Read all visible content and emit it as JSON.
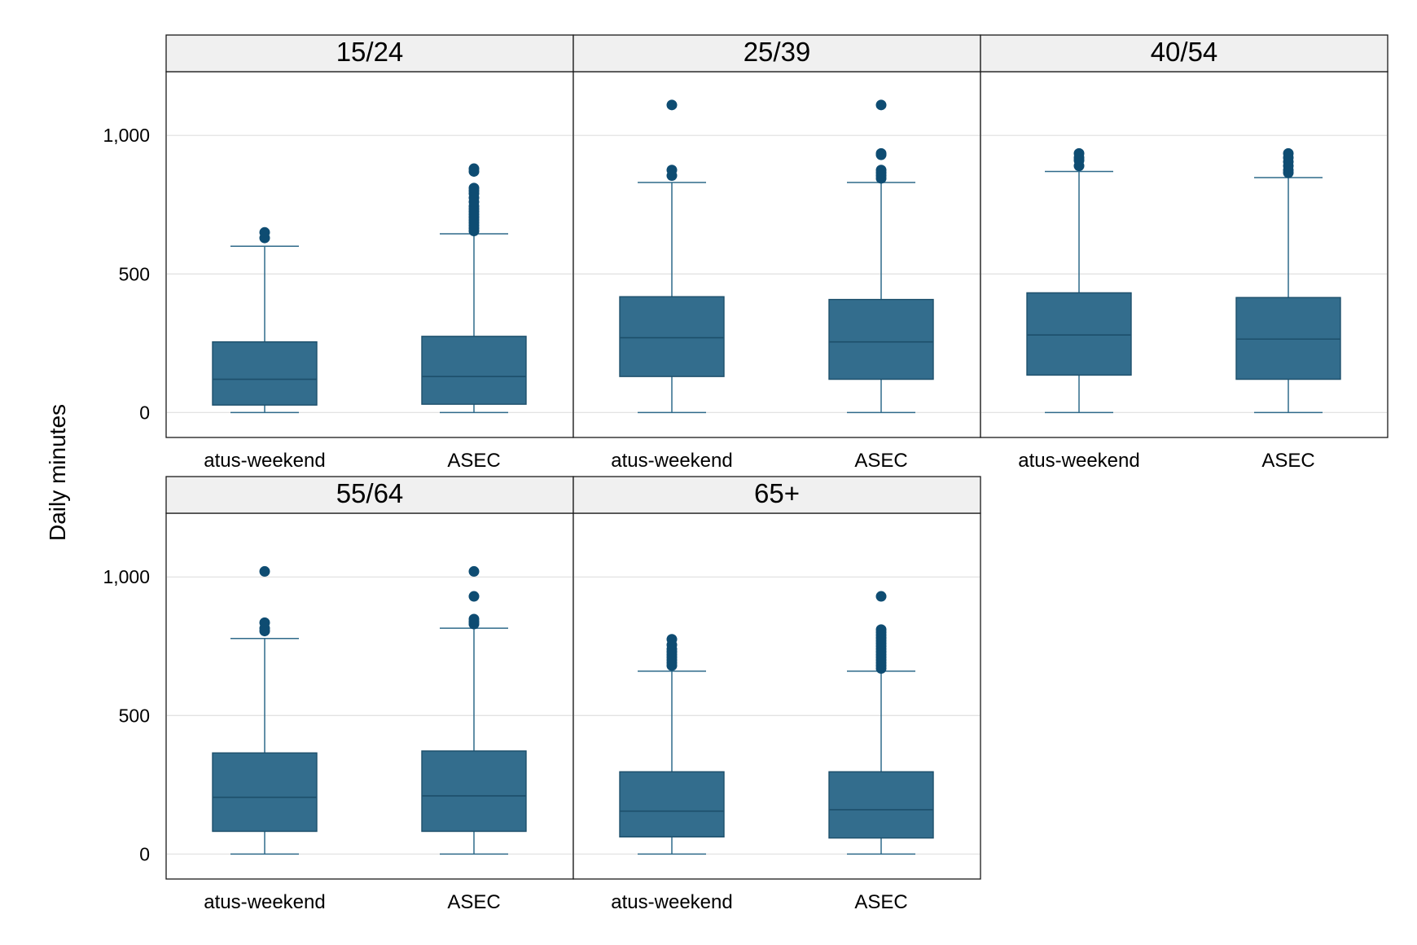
{
  "chart_data": {
    "type": "box",
    "ylabel": "Daily minutes",
    "categories": [
      "atus-weekend",
      "ASEC"
    ],
    "yticks": [
      0,
      500,
      1000
    ],
    "ytick_labels": [
      "0",
      "500",
      "1,000"
    ],
    "ylim": [
      -90,
      1230
    ],
    "grid": true,
    "colors": {
      "box": "#336d8d",
      "outlier": "#0e4c72",
      "strip": "#f0f0f0"
    },
    "panels": [
      {
        "title": "15/24",
        "boxes": [
          {
            "category": "atus-weekend",
            "lower_whisker": 0,
            "q1": 27,
            "median": 120,
            "q3": 255,
            "upper_whisker": 600,
            "outliers": [
              630,
              650
            ]
          },
          {
            "category": "ASEC",
            "lower_whisker": 0,
            "q1": 30,
            "median": 130,
            "q3": 275,
            "upper_whisker": 645,
            "outliers": [
              655,
              665,
              675,
              685,
              695,
              705,
              715,
              725,
              735,
              745,
              760,
              775,
              790,
              800,
              810,
              870,
              880
            ]
          }
        ]
      },
      {
        "title": "25/39",
        "boxes": [
          {
            "category": "atus-weekend",
            "lower_whisker": 0,
            "q1": 130,
            "median": 270,
            "q3": 418,
            "upper_whisker": 830,
            "outliers": [
              855,
              875,
              1110
            ]
          },
          {
            "category": "ASEC",
            "lower_whisker": 0,
            "q1": 120,
            "median": 255,
            "q3": 408,
            "upper_whisker": 830,
            "outliers": [
              845,
              855,
              865,
              875,
              930,
              935,
              1110
            ]
          }
        ]
      },
      {
        "title": "40/54",
        "boxes": [
          {
            "category": "atus-weekend",
            "lower_whisker": 0,
            "q1": 135,
            "median": 280,
            "q3": 432,
            "upper_whisker": 870,
            "outliers": [
              890,
              910,
              920,
              935
            ]
          },
          {
            "category": "ASEC",
            "lower_whisker": 0,
            "q1": 120,
            "median": 265,
            "q3": 415,
            "upper_whisker": 848,
            "outliers": [
              865,
              875,
              890,
              905,
              920,
              935
            ]
          }
        ]
      },
      {
        "title": "55/64",
        "boxes": [
          {
            "category": "atus-weekend",
            "lower_whisker": 0,
            "q1": 82,
            "median": 205,
            "q3": 365,
            "upper_whisker": 778,
            "outliers": [
              805,
              815,
              835,
              1020
            ]
          },
          {
            "category": "ASEC",
            "lower_whisker": 0,
            "q1": 82,
            "median": 210,
            "q3": 372,
            "upper_whisker": 815,
            "outliers": [
              830,
              838,
              848,
              930,
              1020
            ]
          }
        ]
      },
      {
        "title": "65+",
        "boxes": [
          {
            "category": "atus-weekend",
            "lower_whisker": 0,
            "q1": 62,
            "median": 155,
            "q3": 297,
            "upper_whisker": 660,
            "outliers": [
              680,
              690,
              700,
              710,
              720,
              730,
              740,
              755,
              775
            ]
          },
          {
            "category": "ASEC",
            "lower_whisker": 0,
            "q1": 58,
            "median": 160,
            "q3": 297,
            "upper_whisker": 660,
            "outliers": [
              670,
              680,
              690,
              700,
              710,
              720,
              730,
              740,
              750,
              760,
              770,
              780,
              790,
              800,
              810,
              930
            ]
          }
        ]
      }
    ]
  }
}
